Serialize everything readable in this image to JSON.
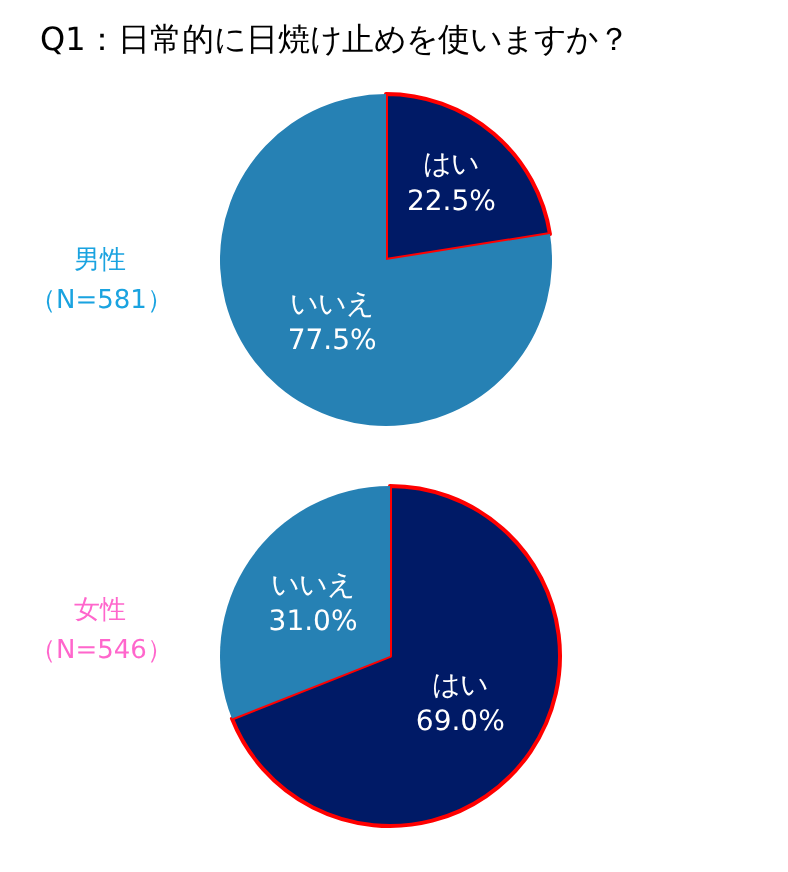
{
  "chart_data": [
    {
      "type": "pie",
      "title": "Q1：日常的に日焼け止めを使いますか？",
      "annotations": [
        "男性",
        "（N=581）"
      ],
      "categories": [
        "はい",
        "いいえ"
      ],
      "values": [
        22.5,
        77.5
      ],
      "colors": [
        "#001a66",
        "#2681b4"
      ],
      "value_labels": [
        "22.5%",
        "77.5%"
      ]
    },
    {
      "type": "pie",
      "annotations": [
        "女性",
        "（N=546）"
      ],
      "categories": [
        "はい",
        "いいえ"
      ],
      "values": [
        69.0,
        31.0
      ],
      "colors": [
        "#001a66",
        "#2681b4"
      ],
      "value_labels": [
        "69.0%",
        "31.0%"
      ]
    }
  ]
}
